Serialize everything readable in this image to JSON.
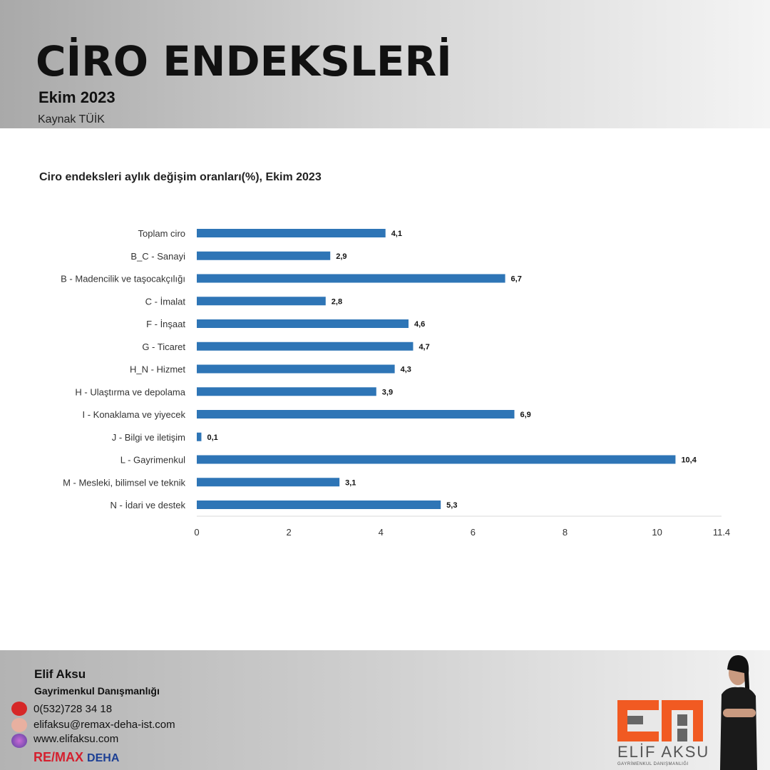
{
  "header": {
    "title": "CİRO ENDEKSLERİ",
    "date": "Ekim 2023",
    "source": "Kaynak TÜİK"
  },
  "chart_data": {
    "type": "bar",
    "orientation": "horizontal",
    "title": "Ciro endeksleri aylık değişim oranları(%), Ekim 2023",
    "categories": [
      "Toplam ciro",
      "B_C - Sanayi",
      "B - Madencilik ve taşocakçılığı",
      "C - İmalat",
      "F - İnşaat",
      "G - Ticaret",
      "H_N - Hizmet",
      "H - Ulaştırma ve depolama",
      "I - Konaklama ve yiyecek",
      "J - Bilgi ve iletişim",
      "L - Gayrimenkul",
      "M - Mesleki, bilimsel ve teknik",
      "N - İdari ve destek"
    ],
    "values": [
      4.1,
      2.9,
      6.7,
      2.8,
      4.6,
      4.7,
      4.3,
      3.9,
      6.9,
      0.1,
      10.4,
      3.1,
      5.3
    ],
    "value_labels": [
      "4,1",
      "2,9",
      "6,7",
      "2,8",
      "4,6",
      "4,7",
      "4,3",
      "3,9",
      "6,9",
      "0,1",
      "10,4",
      "3,1",
      "5,3"
    ],
    "xlim": [
      0,
      11.4
    ],
    "xticks": [
      0,
      2,
      4,
      6,
      8,
      10,
      11.4
    ],
    "xtick_labels": [
      "0",
      "2",
      "4",
      "6",
      "8",
      "10",
      "11.4"
    ],
    "bar_color": "#2e75b6"
  },
  "footer": {
    "name": "Elif Aksu",
    "role": "Gayrimenkul Danışmanlığı",
    "phone": "0(532)728 34 18",
    "email": "elifaksu@remax-deha-ist.com",
    "website": "www.elifaksu.com",
    "brand_left": "RE/MAX",
    "brand_right": "DEHA",
    "logo_name": "ELİF AKSU",
    "logo_sub": "GAYRİMENKUL DANIŞMANLIĞI",
    "logo_color": "#f15a22"
  }
}
